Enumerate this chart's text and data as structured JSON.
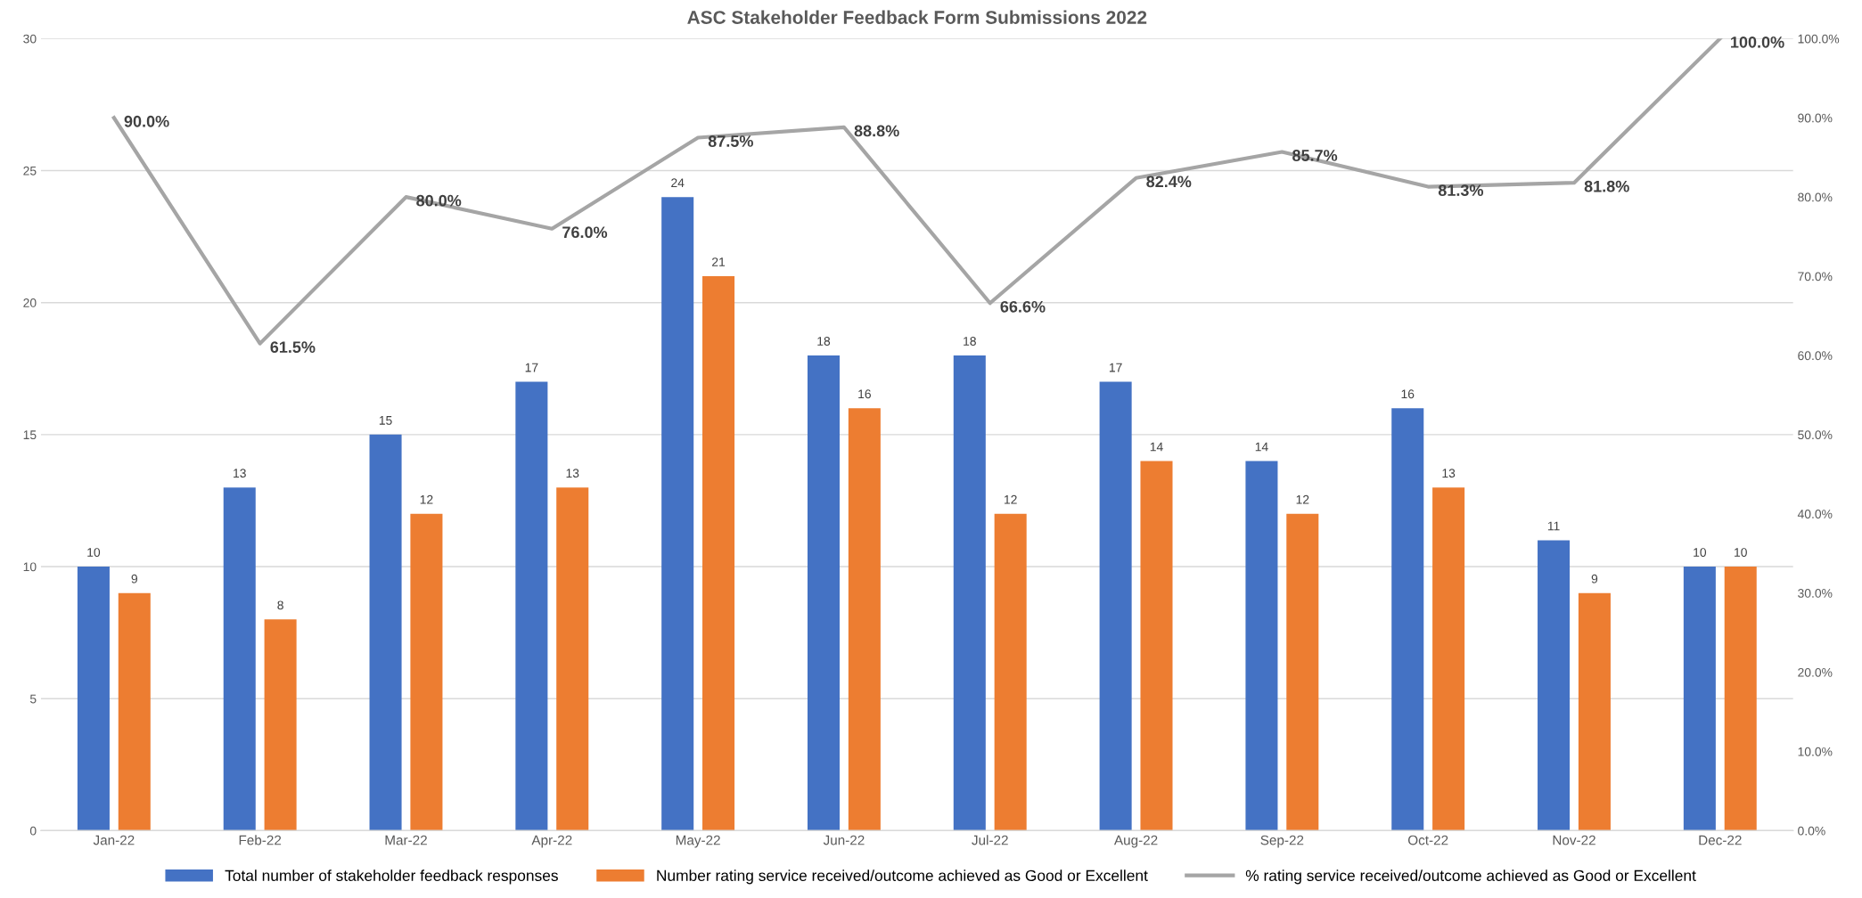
{
  "chart_data": {
    "type": "bar",
    "title": "ASC Stakeholder Feedback Form Submissions 2022",
    "categories": [
      "Jan-22",
      "Feb-22",
      "Mar-22",
      "Apr-22",
      "May-22",
      "Jun-22",
      "Jul-22",
      "Aug-22",
      "Sep-22",
      "Oct-22",
      "Nov-22",
      "Dec-22"
    ],
    "series": [
      {
        "name": "Total number of stakeholder feedback responses",
        "color": "#4472c4",
        "values": [
          10,
          13,
          15,
          17,
          24,
          18,
          18,
          17,
          14,
          16,
          11,
          10
        ]
      },
      {
        "name": "Number rating service received/outcome achieved as Good or Excellent",
        "color": "#ed7d31",
        "values": [
          9,
          8,
          12,
          13,
          21,
          16,
          12,
          14,
          12,
          13,
          9,
          10
        ]
      },
      {
        "name": "% rating service received/outcome achieved as Good or Excellent",
        "type": "line",
        "axis": "y2",
        "color": "#a5a5a5",
        "values": [
          90.0,
          61.5,
          80.0,
          76.0,
          87.5,
          88.8,
          66.6,
          82.4,
          85.7,
          81.3,
          81.8,
          100.0
        ],
        "value_labels": [
          "90.0%",
          "61.5%",
          "80.0%",
          "76.0%",
          "87.5%",
          "88.8%",
          "66.6%",
          "82.4%",
          "85.7%",
          "81.3%",
          "81.8%",
          "100.0%"
        ]
      }
    ],
    "data_labels": true,
    "ylim": [
      0,
      30
    ],
    "yticks": [
      0,
      5,
      10,
      15,
      20,
      25,
      30
    ],
    "y2lim": [
      0,
      100
    ],
    "y2ticks": [
      {
        "value": 0,
        "label": "0.0%"
      },
      {
        "value": 10,
        "label": "10.0%"
      },
      {
        "value": 20,
        "label": "20.0%"
      },
      {
        "value": 30,
        "label": "30.0%"
      },
      {
        "value": 40,
        "label": "40.0%"
      },
      {
        "value": 50,
        "label": "50.0%"
      },
      {
        "value": 60,
        "label": "60.0%"
      },
      {
        "value": 70,
        "label": "70.0%"
      },
      {
        "value": 80,
        "label": "80.0%"
      },
      {
        "value": 90,
        "label": "90.0%"
      },
      {
        "value": 100,
        "label": "100.0%"
      }
    ],
    "grid": "y",
    "legend": "bottom",
    "marker": "none",
    "line_style": "solid"
  }
}
